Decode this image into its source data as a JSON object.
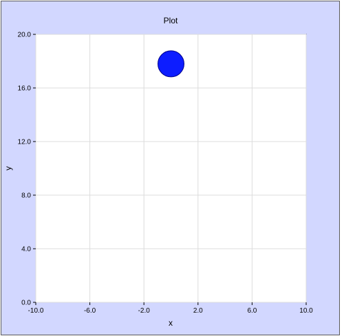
{
  "chart_data": {
    "type": "scatter",
    "title": "Plot",
    "xlabel": "x",
    "ylabel": "y",
    "xlim": [
      -10.0,
      10.0
    ],
    "ylim": [
      0.0,
      20.0
    ],
    "xticks": [
      "-10.0",
      "-6.0",
      "-2.0",
      "2.0",
      "6.0",
      "10.0"
    ],
    "yticks": [
      "0.0",
      "4.0",
      "8.0",
      "12.0",
      "16.0",
      "20.0"
    ],
    "grid": true,
    "legend": "none",
    "series": [
      {
        "points": [
          {
            "x": 0.0,
            "y": 17.8
          }
        ],
        "color": "#0d1dff",
        "edge_color": "#00008b"
      }
    ]
  }
}
